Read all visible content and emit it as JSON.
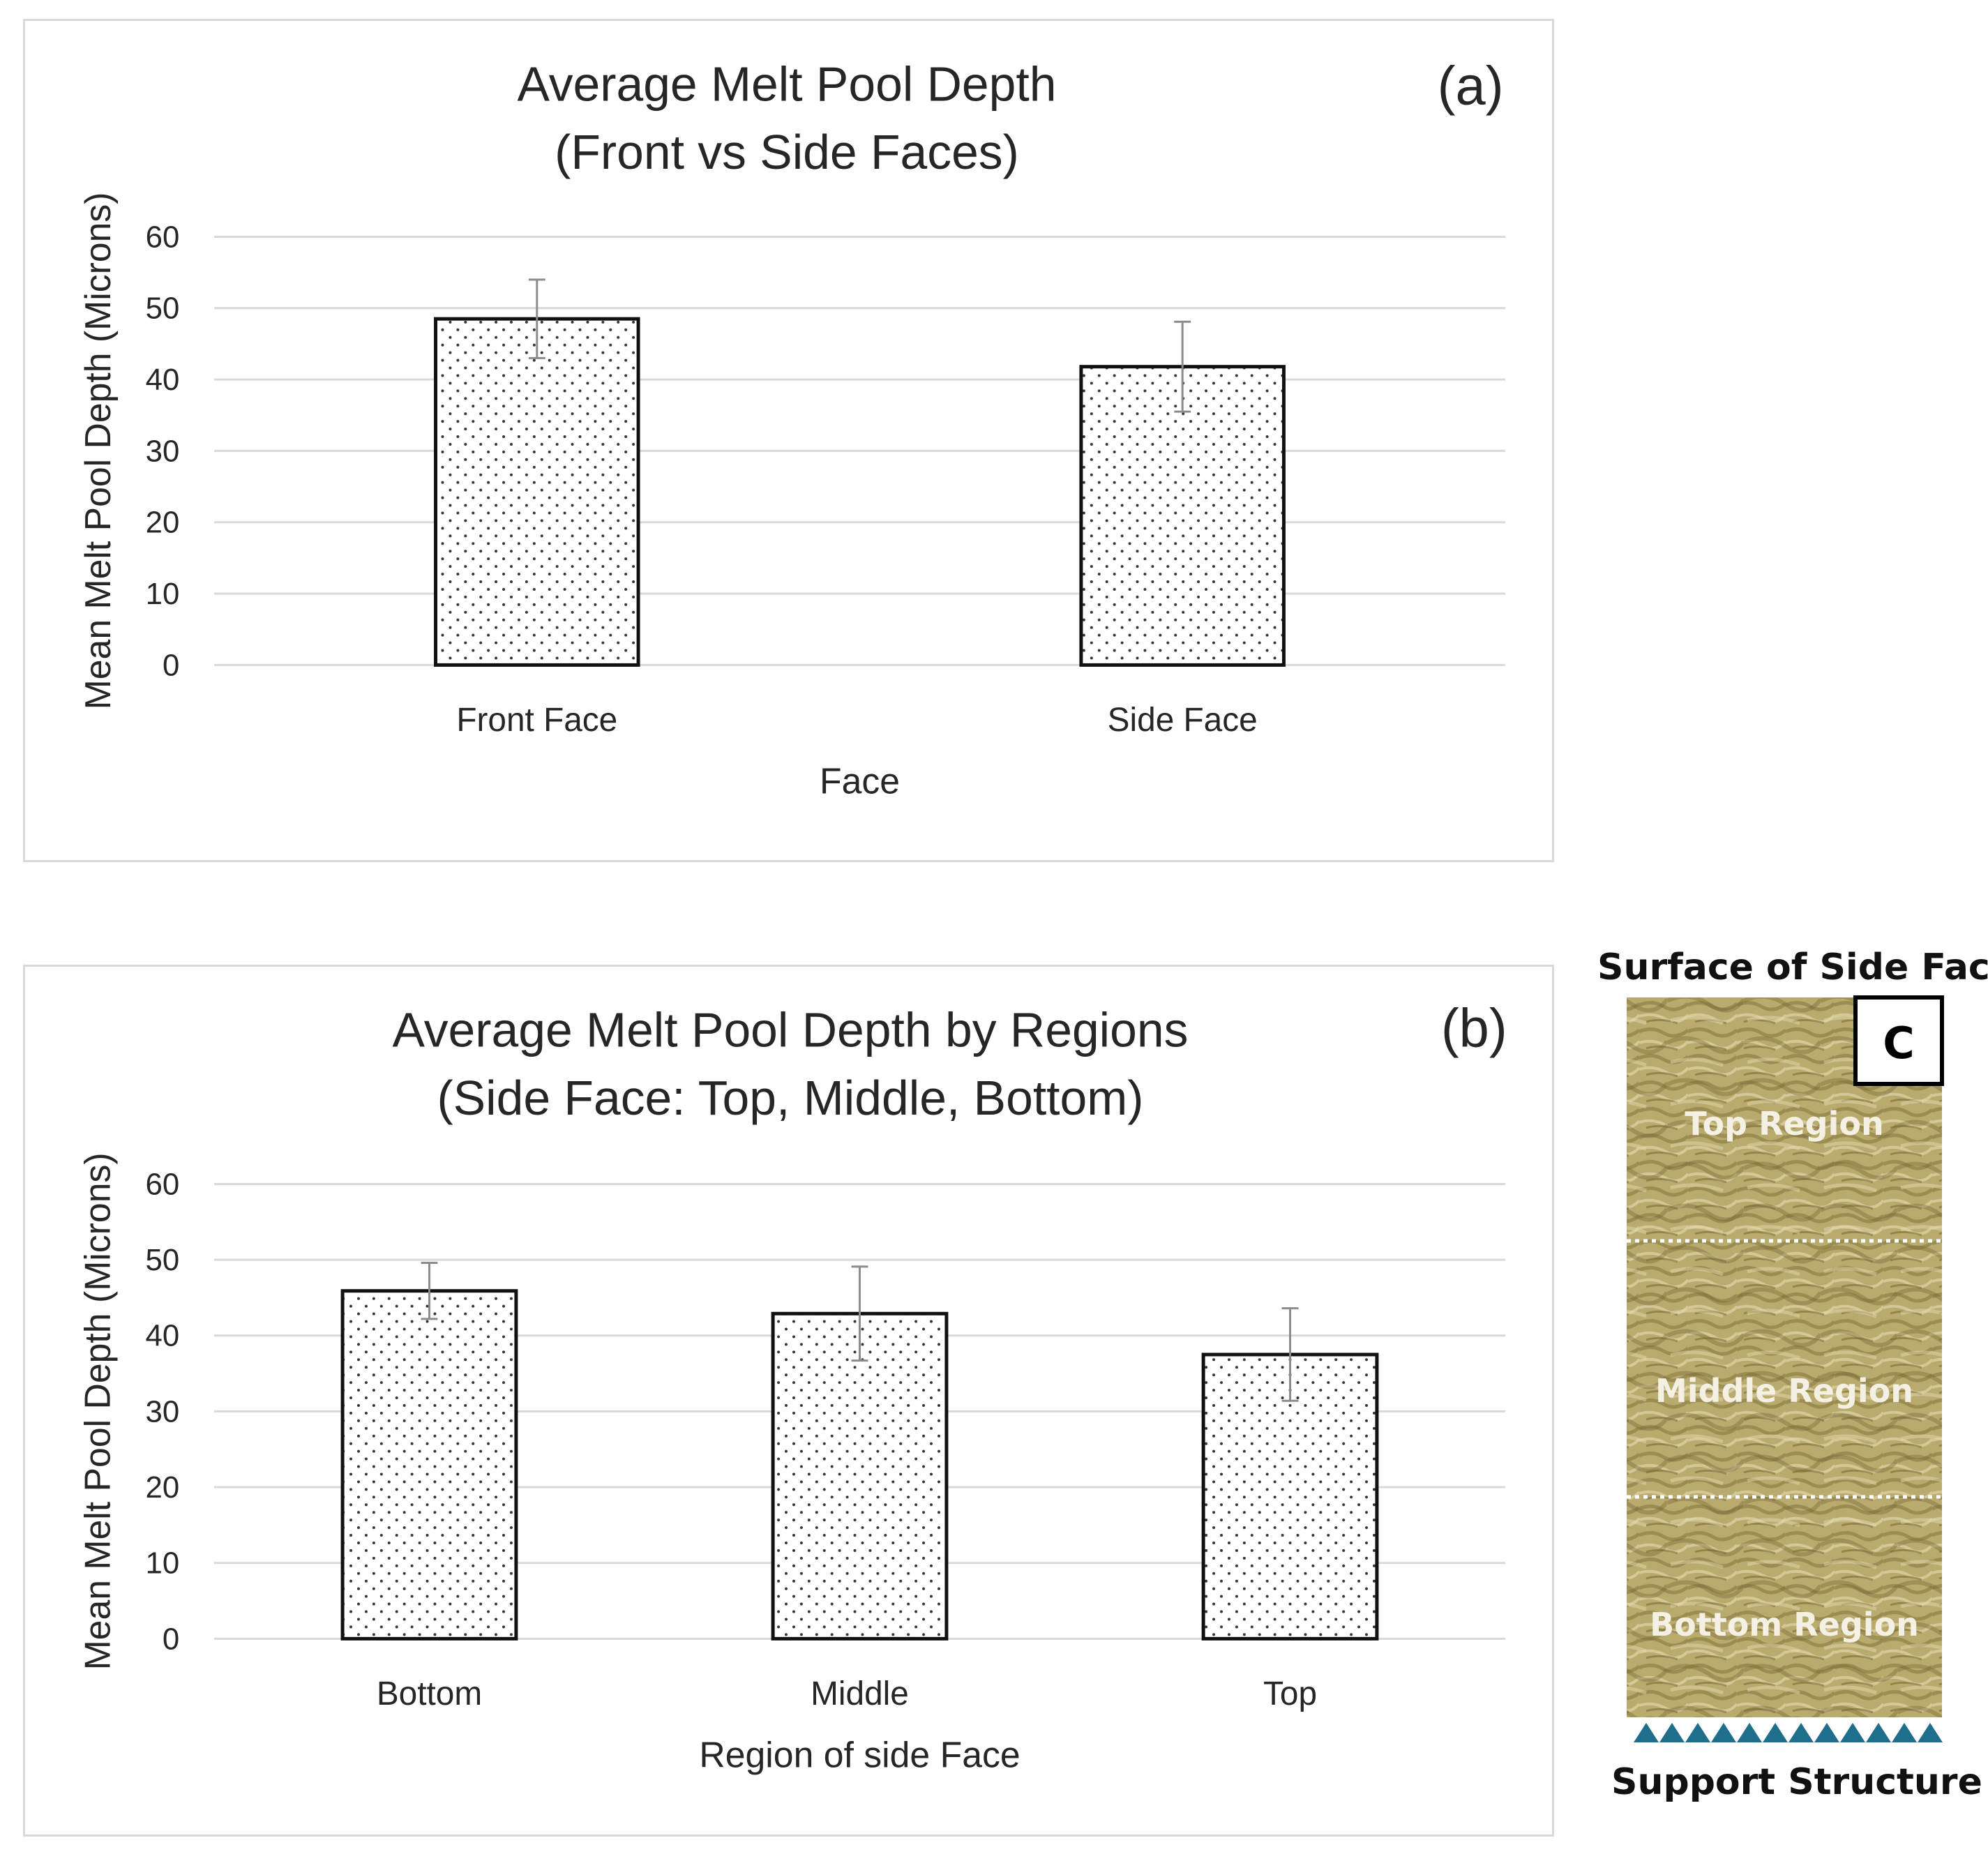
{
  "chart_data": [
    {
      "type": "bar",
      "panel_label": "(a)",
      "title": [
        "Average Melt Pool Depth",
        "(Front vs Side Faces)"
      ],
      "xlabel": "Face",
      "ylabel": "Mean Melt Pool Depth (Microns)",
      "categories": [
        "Front Face",
        "Side Face"
      ],
      "values": [
        48.5,
        41.8
      ],
      "error": [
        5.5,
        6.3
      ],
      "ylim": [
        0,
        60
      ],
      "yticks": [
        0,
        10,
        20,
        30,
        40,
        50,
        60
      ],
      "grid": true,
      "bar_pattern": "dotted"
    },
    {
      "type": "bar",
      "panel_label": "(b)",
      "title": [
        "Average Melt Pool Depth by Regions",
        "(Side Face: Top, Middle, Bottom)"
      ],
      "xlabel": "Region of side Face",
      "ylabel": "Mean Melt Pool Depth (Microns)",
      "categories": [
        "Bottom",
        "Middle",
        "Top"
      ],
      "values": [
        45.9,
        42.9,
        37.5
      ],
      "error": [
        3.7,
        6.2,
        6.1
      ],
      "ylim": [
        0,
        60
      ],
      "yticks": [
        0,
        10,
        20,
        30,
        40,
        50,
        60
      ],
      "grid": true,
      "bar_pattern": "dotted"
    }
  ],
  "photo_panel": {
    "heading": "Surface of Side Face",
    "panel_label": "C",
    "regions": [
      "Top Region",
      "Middle Region",
      "Bottom Region"
    ],
    "footer": "Support Structure",
    "surface_color": "#b7a86c",
    "support_color": "#1f6e8c"
  },
  "colors": {
    "grid": "#d9d9d9",
    "bar_edge": "#111111",
    "error_bar": "#8c8c8c",
    "text": "#262626"
  }
}
